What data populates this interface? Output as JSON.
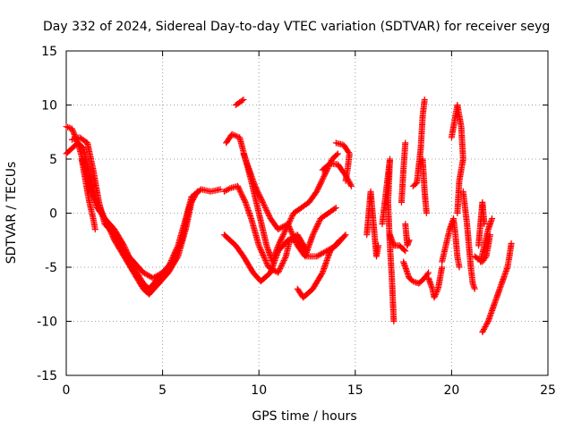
{
  "chart_data": {
    "type": "scatter",
    "title": "Day 332 of 2024, Sidereal Day-to-day VTEC variation (SDTVAR) for receiver seyg",
    "xlabel": "GPS time / hours",
    "ylabel": "SDTVAR / TECUs",
    "xlim": [
      0,
      25
    ],
    "ylim": [
      -15,
      15
    ],
    "xticks": [
      "0",
      "5",
      "10",
      "15",
      "20",
      "25"
    ],
    "yticks": [
      "15",
      "10",
      "5",
      "0",
      "-5",
      "-10",
      "-15"
    ],
    "grid": true,
    "marker": "+",
    "color": "#ff0000",
    "series": [
      {
        "name": "arc1",
        "points": [
          [
            0,
            8
          ],
          [
            0.3,
            7.8
          ],
          [
            0.6,
            6.5
          ],
          [
            1,
            4
          ],
          [
            1.3,
            2
          ],
          [
            1.6,
            0.5
          ],
          [
            2,
            -0.5
          ],
          [
            2.5,
            -1.5
          ],
          [
            3,
            -3
          ],
          [
            3.5,
            -5
          ],
          [
            4,
            -6.5
          ],
          [
            4.3,
            -7
          ],
          [
            4.8,
            -6
          ],
          [
            5.3,
            -5
          ],
          [
            5.8,
            -3
          ],
          [
            6.2,
            -0.5
          ],
          [
            6.5,
            1.5
          ],
          [
            7,
            2.2
          ],
          [
            7.5,
            2
          ],
          [
            8,
            2.2
          ]
        ]
      },
      {
        "name": "arc2",
        "points": [
          [
            0,
            5.5
          ],
          [
            0.3,
            6
          ],
          [
            0.6,
            6.5
          ],
          [
            0.9,
            6
          ],
          [
            1.3,
            3
          ],
          [
            1.6,
            1
          ],
          [
            2,
            -0.5
          ],
          [
            2.5,
            -2.5
          ],
          [
            3,
            -4
          ],
          [
            3.5,
            -5.5
          ],
          [
            4,
            -7
          ],
          [
            4.3,
            -7.5
          ],
          [
            4.8,
            -6.5
          ],
          [
            5.3,
            -5.5
          ],
          [
            5.8,
            -4
          ],
          [
            6.2,
            -1.5
          ],
          [
            6.5,
            1
          ],
          [
            6.8,
            2
          ]
        ]
      },
      {
        "name": "arc3",
        "points": [
          [
            0.3,
            6.8
          ],
          [
            0.7,
            7
          ],
          [
            1.1,
            6.5
          ],
          [
            1.4,
            4
          ],
          [
            1.7,
            1
          ],
          [
            2,
            -1
          ],
          [
            2.5,
            -2
          ],
          [
            3,
            -3.5
          ],
          [
            3.5,
            -4.5
          ],
          [
            4,
            -5.5
          ],
          [
            4.5,
            -6
          ],
          [
            5,
            -5.5
          ],
          [
            5.5,
            -4.5
          ],
          [
            6,
            -2.5
          ],
          [
            6.3,
            0
          ],
          [
            6.6,
            1.5
          ]
        ]
      },
      {
        "name": "arc4",
        "points": [
          [
            0.8,
            5
          ],
          [
            1.0,
            3
          ],
          [
            1.2,
            1
          ],
          [
            1.4,
            -0.5
          ],
          [
            1.5,
            -1.5
          ]
        ]
      },
      {
        "name": "arc5",
        "points": [
          [
            8.2,
            2
          ],
          [
            8.5,
            2.3
          ],
          [
            8.9,
            2.5
          ],
          [
            9.3,
            1
          ],
          [
            9.6,
            -0.5
          ],
          [
            10,
            -3
          ],
          [
            10.5,
            -5
          ],
          [
            11,
            -5.5
          ],
          [
            11.4,
            -4
          ],
          [
            11.6,
            -2.5
          ],
          [
            12,
            -2.5
          ],
          [
            12.5,
            -4
          ],
          [
            13,
            -4
          ],
          [
            13.5,
            -3.5
          ],
          [
            14,
            -3
          ],
          [
            14.5,
            -2
          ]
        ]
      },
      {
        "name": "arc6",
        "points": [
          [
            8.3,
            6.5
          ],
          [
            8.6,
            7.3
          ],
          [
            9,
            7
          ],
          [
            9.3,
            5
          ],
          [
            9.6,
            3
          ],
          [
            10,
            0
          ],
          [
            10.4,
            -3
          ],
          [
            10.7,
            -4.5
          ],
          [
            11,
            -3
          ],
          [
            11.4,
            -1.5
          ],
          [
            11.8,
            0
          ],
          [
            12.2,
            0.5
          ],
          [
            12.6,
            1
          ],
          [
            13,
            2
          ],
          [
            13.4,
            3.5
          ],
          [
            13.8,
            5
          ],
          [
            14.1,
            5.5
          ]
        ]
      },
      {
        "name": "arc7",
        "points": [
          [
            9.2,
            5.5
          ],
          [
            9.5,
            4
          ],
          [
            9.8,
            2.5
          ],
          [
            10.2,
            1
          ],
          [
            10.6,
            -0.5
          ],
          [
            11,
            -1.5
          ],
          [
            11.5,
            -1
          ],
          [
            12,
            -3
          ],
          [
            12.4,
            -4
          ],
          [
            12.8,
            -2
          ],
          [
            13.2,
            -0.5
          ],
          [
            13.6,
            0
          ],
          [
            14,
            0.5
          ]
        ]
      },
      {
        "name": "arc8",
        "points": [
          [
            8.2,
            -2
          ],
          [
            8.8,
            -3
          ],
          [
            9.2,
            -4
          ],
          [
            9.7,
            -5.5
          ],
          [
            10.1,
            -6.3
          ],
          [
            10.6,
            -5.5
          ],
          [
            11,
            -3.5
          ],
          [
            11.5,
            -2.5
          ],
          [
            12,
            -2
          ],
          [
            12.5,
            -3.5
          ]
        ]
      },
      {
        "name": "arc9",
        "points": [
          [
            12,
            -7
          ],
          [
            12.3,
            -7.8
          ],
          [
            12.8,
            -7
          ],
          [
            13.3,
            -5.5
          ],
          [
            13.7,
            -3.5
          ],
          [
            14.2,
            -2.5
          ]
        ]
      },
      {
        "name": "arc10",
        "points": [
          [
            8.8,
            10
          ],
          [
            9.2,
            10.5
          ]
        ]
      },
      {
        "name": "arc11",
        "points": [
          [
            14,
            6.5
          ],
          [
            14.4,
            6.3
          ],
          [
            14.7,
            5.5
          ],
          [
            14.6,
            4
          ],
          [
            14.5,
            3
          ]
        ]
      },
      {
        "name": "arc12",
        "points": [
          [
            13.3,
            4
          ],
          [
            13.7,
            4.6
          ],
          [
            14.1,
            4.5
          ],
          [
            14.5,
            3.5
          ],
          [
            14.8,
            2.5
          ]
        ]
      },
      {
        "name": "arc13",
        "points": [
          [
            15.6,
            -2
          ],
          [
            15.7,
            0
          ],
          [
            15.8,
            2
          ],
          [
            15.9,
            0
          ],
          [
            16,
            -2
          ],
          [
            16.1,
            -4
          ],
          [
            16.2,
            -3
          ]
        ]
      },
      {
        "name": "arc14",
        "points": [
          [
            16.4,
            -1
          ],
          [
            16.6,
            2
          ],
          [
            16.8,
            5
          ],
          [
            16.7,
            1
          ],
          [
            16.8,
            -3
          ],
          [
            16.9,
            -6
          ],
          [
            16.95,
            -8
          ],
          [
            17,
            -10
          ]
        ]
      },
      {
        "name": "arc15",
        "points": [
          [
            16.8,
            -2
          ],
          [
            17,
            -3
          ],
          [
            17.3,
            -3
          ],
          [
            17.6,
            -3.5
          ]
        ]
      },
      {
        "name": "arc16",
        "points": [
          [
            17.4,
            1
          ],
          [
            17.5,
            4
          ],
          [
            17.6,
            6.5
          ]
        ]
      },
      {
        "name": "arc17",
        "points": [
          [
            17.6,
            -1
          ],
          [
            17.7,
            -3
          ],
          [
            17.8,
            -2.5
          ]
        ]
      },
      {
        "name": "arc18",
        "points": [
          [
            17.5,
            -4.5
          ],
          [
            17.8,
            -6
          ],
          [
            18,
            -6.3
          ],
          [
            18.3,
            -6.5
          ],
          [
            18.6,
            -6
          ],
          [
            18.8,
            -5.5
          ]
        ]
      },
      {
        "name": "arc19",
        "points": [
          [
            18,
            2.5
          ],
          [
            18.2,
            2.8
          ],
          [
            18.4,
            6
          ],
          [
            18.5,
            9
          ],
          [
            18.6,
            10.5
          ]
        ]
      },
      {
        "name": "arc20",
        "points": [
          [
            18.5,
            5
          ],
          [
            18.6,
            2
          ],
          [
            18.7,
            0
          ]
        ]
      },
      {
        "name": "arc21",
        "points": [
          [
            18.8,
            -6
          ],
          [
            19,
            -7
          ],
          [
            19.1,
            -7.8
          ],
          [
            19.3,
            -7
          ],
          [
            19.5,
            -5
          ]
        ]
      },
      {
        "name": "arc22",
        "points": [
          [
            19.5,
            -4.5
          ],
          [
            19.7,
            -3
          ],
          [
            19.9,
            -1.5
          ],
          [
            20.1,
            -0.5
          ],
          [
            20.2,
            -2
          ],
          [
            20.3,
            -4
          ],
          [
            20.4,
            -5
          ]
        ]
      },
      {
        "name": "arc23",
        "points": [
          [
            20,
            7
          ],
          [
            20.2,
            9
          ],
          [
            20.3,
            10
          ],
          [
            20.5,
            8
          ],
          [
            20.6,
            5
          ],
          [
            20.4,
            3
          ],
          [
            20.3,
            0
          ]
        ]
      },
      {
        "name": "arc24",
        "points": [
          [
            20.6,
            2
          ],
          [
            20.8,
            -1
          ],
          [
            20.9,
            -3
          ],
          [
            21,
            -5
          ],
          [
            21.1,
            -6.5
          ],
          [
            21.2,
            -7
          ]
        ]
      },
      {
        "name": "arc25",
        "points": [
          [
            21.4,
            -3
          ],
          [
            21.5,
            -1
          ],
          [
            21.6,
            1
          ],
          [
            21.7,
            -1
          ]
        ]
      },
      {
        "name": "arc26",
        "points": [
          [
            21.5,
            -4.5
          ],
          [
            21.7,
            -3
          ],
          [
            21.9,
            -1.5
          ],
          [
            22.1,
            -0.5
          ]
        ]
      },
      {
        "name": "arc27",
        "points": [
          [
            21.6,
            -11
          ],
          [
            21.9,
            -10
          ],
          [
            22.1,
            -9
          ],
          [
            22.3,
            -8
          ],
          [
            22.6,
            -6.5
          ],
          [
            22.9,
            -5
          ],
          [
            23,
            -4
          ],
          [
            23.1,
            -2.8
          ]
        ]
      },
      {
        "name": "arc28",
        "points": [
          [
            21.2,
            -4
          ],
          [
            21.6,
            -4.5
          ],
          [
            21.8,
            -4
          ],
          [
            22,
            -2
          ]
        ]
      }
    ]
  }
}
